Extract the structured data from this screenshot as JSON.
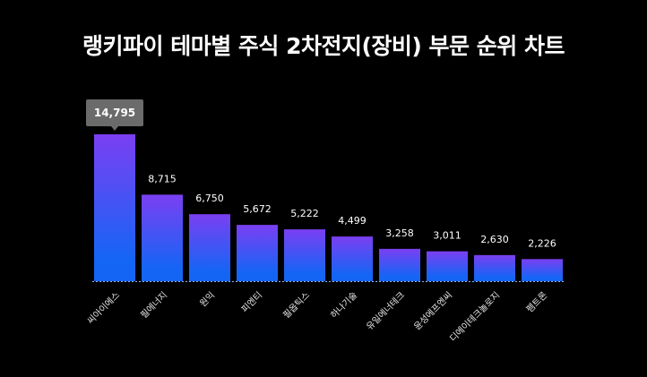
{
  "chart_data": {
    "type": "bar",
    "title": "랭키파이 테마별 주식 2차전지(장비) 부문 순위 차트",
    "categories": [
      "씨아이에스",
      "필에너지",
      "원익",
      "피엔티",
      "필옵틱스",
      "하나기술",
      "유일에너테크",
      "윤성에프엔씨",
      "디에이테크놀로지",
      "펨트론"
    ],
    "values": [
      14795,
      8715,
      6750,
      5672,
      5222,
      4499,
      3258,
      3011,
      2630,
      2226
    ],
    "value_labels": [
      "14,795",
      "8,715",
      "6,750",
      "5,672",
      "5,222",
      "4,499",
      "3,258",
      "3,011",
      "2,630",
      "2,226"
    ],
    "highlighted_label": "14,795",
    "xlabel": "",
    "ylabel": "",
    "ylim": [
      0,
      14795
    ],
    "grid": false,
    "colors": {
      "bar_top": "#7b3ff2",
      "bar_bottom": "#1565f5",
      "callout_bg": "#6b6b6b",
      "baseline": "#8fb4ff",
      "background": "#000000",
      "text": "#ffffff"
    }
  }
}
